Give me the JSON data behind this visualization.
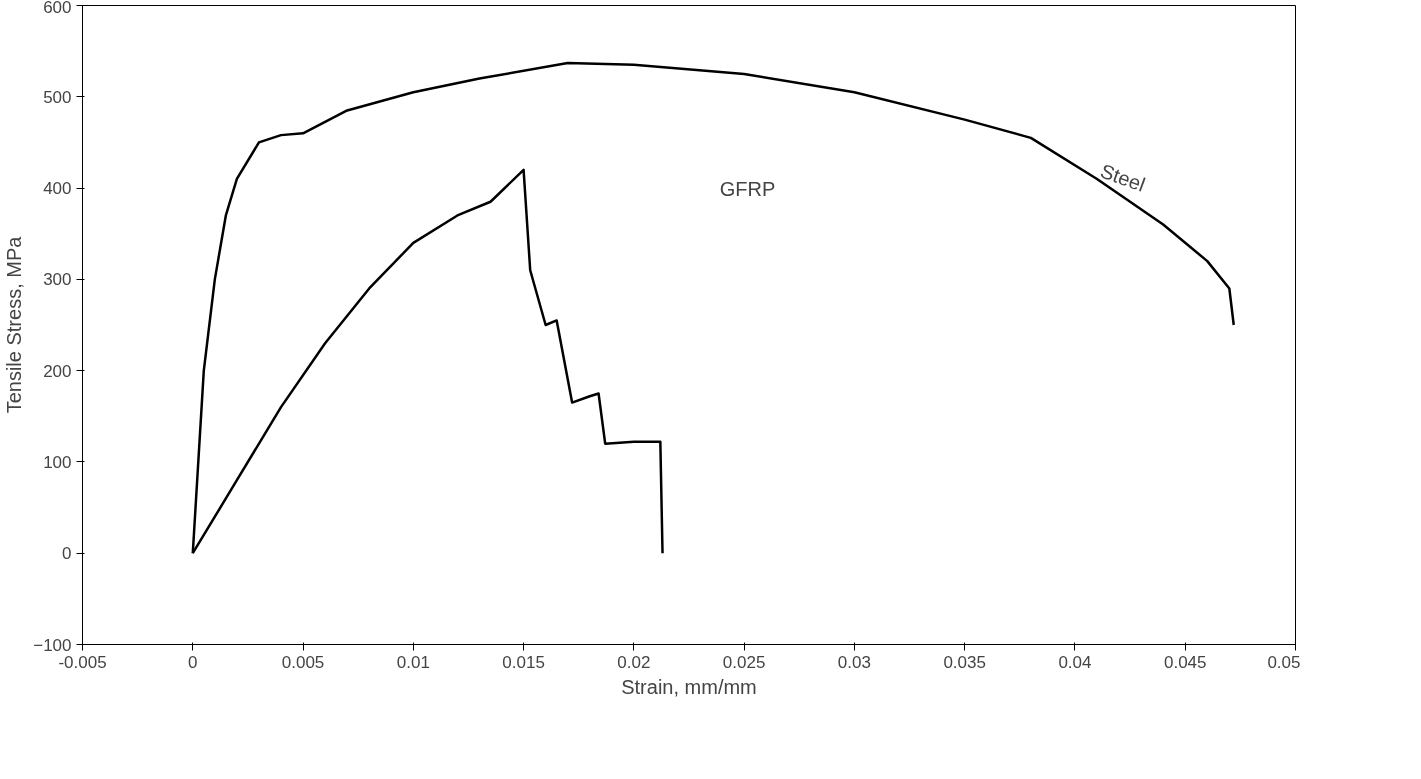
{
  "chart_data": {
    "type": "line",
    "xlabel": "Strain, mm/mm",
    "ylabel": "Tensile Stress, MPa",
    "xlim": [
      -0.005,
      0.05
    ],
    "ylim": [
      -100,
      600
    ],
    "xticks": [
      -0.005,
      0,
      0.005,
      0.01,
      0.015,
      0.02,
      0.025,
      0.03,
      0.035,
      0.04,
      0.045,
      0.05
    ],
    "yticks": [
      -100,
      0,
      100,
      200,
      300,
      400,
      500,
      600
    ],
    "grid": false,
    "marker": "none",
    "line_style": "solid",
    "series": [
      {
        "color": "#000000",
        "x": [
          0,
          0.0005,
          0.001,
          0.0015,
          0.002,
          0.003,
          0.004,
          0.005,
          0.007,
          0.01,
          0.013,
          0.017,
          0.02,
          0.025,
          0.03,
          0.035,
          0.038,
          0.041,
          0.044,
          0.046,
          0.047,
          0.0472
        ],
        "values": [
          0,
          200,
          300,
          370,
          410,
          450,
          458,
          460,
          485,
          505,
          520,
          537,
          535,
          525,
          505,
          475,
          455,
          410,
          360,
          320,
          290,
          250
        ]
      },
      {
        "color": "#000000",
        "x": [
          0,
          0.002,
          0.004,
          0.006,
          0.008,
          0.01,
          0.012,
          0.0135,
          0.015,
          0.0153,
          0.016,
          0.0165,
          0.0172,
          0.018,
          0.0184,
          0.0187,
          0.02,
          0.0212,
          0.0213
        ],
        "values": [
          0,
          80,
          160,
          230,
          290,
          340,
          370,
          385,
          420,
          310,
          250,
          255,
          165,
          172,
          175,
          120,
          122,
          122,
          0
        ]
      }
    ],
    "annotations": [
      "GFRP",
      {
        "text": "Steel",
        "x": 0.042,
        "y": 400
      }
    ]
  }
}
